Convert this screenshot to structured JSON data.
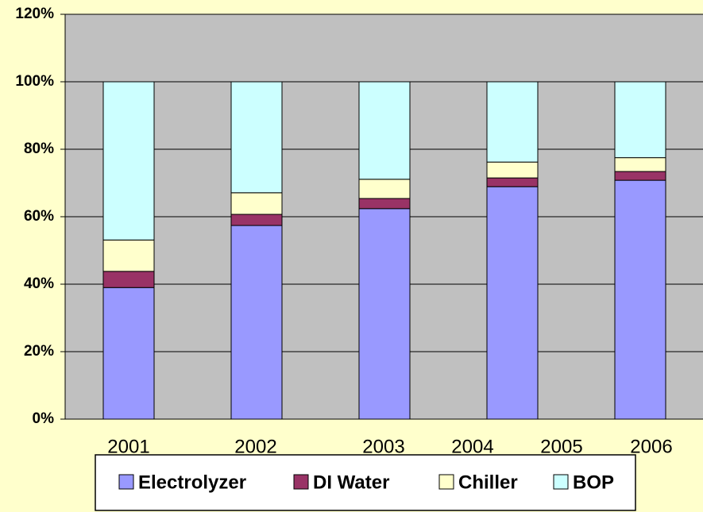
{
  "chart_data": {
    "type": "stacked_bar",
    "categories": [
      "2001",
      "2002",
      "2003",
      "2004",
      "2005",
      "2006"
    ],
    "series": [
      {
        "name": "Electrolyzer",
        "color": "#9999ff",
        "values": [
          39,
          57.4,
          62.4,
          68.9,
          null,
          70.8
        ]
      },
      {
        "name": "DI Water",
        "color": "#993366",
        "values": [
          4.8,
          3.3,
          3.0,
          2.6,
          null,
          2.6
        ]
      },
      {
        "name": "Chiller",
        "color": "#ffffcc",
        "values": [
          9.3,
          6.4,
          5.7,
          4.7,
          null,
          4.1
        ]
      },
      {
        "name": "BOP",
        "color": "#ccffff",
        "values": [
          46.9,
          32.9,
          28.9,
          23.8,
          null,
          22.5
        ]
      }
    ],
    "ylim": [
      0,
      120
    ],
    "yticks": [
      {
        "value": 0,
        "label": "0%"
      },
      {
        "value": 20,
        "label": "20%"
      },
      {
        "value": 40,
        "label": "40%"
      },
      {
        "value": 60,
        "label": "60%"
      },
      {
        "value": 80,
        "label": "80%"
      },
      {
        "value": 100,
        "label": "100%"
      },
      {
        "value": 120,
        "label": "120%"
      }
    ],
    "grid": true,
    "plot_background": "#c0c0c0",
    "legend": "bottom"
  }
}
